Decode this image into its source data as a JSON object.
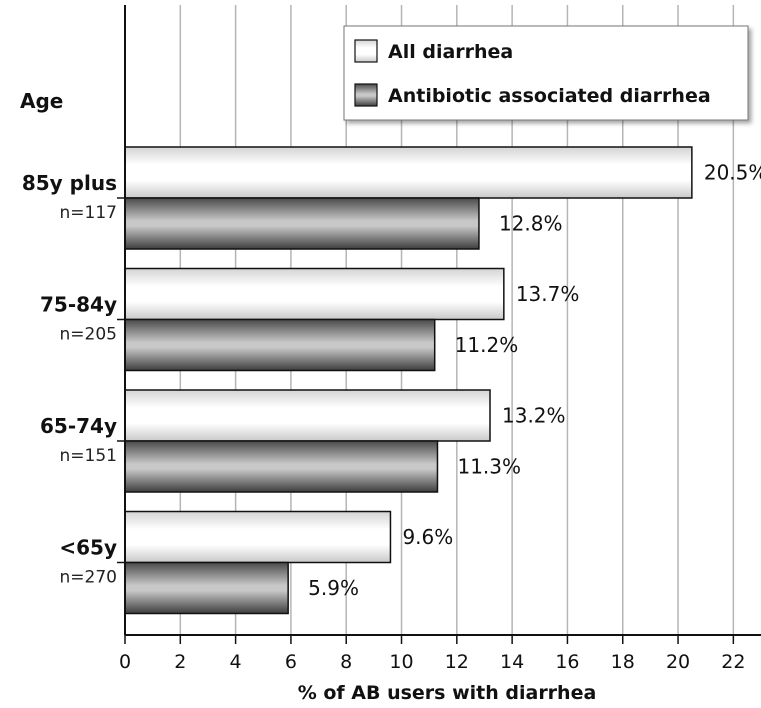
{
  "chart_data": {
    "type": "bar",
    "orientation": "horizontal",
    "categories": [
      "85y plus",
      "75-84y",
      "65-74y",
      "<65y"
    ],
    "category_counts": [
      "n=117",
      "n=205",
      "n=151",
      "n=270"
    ],
    "series": [
      {
        "name": "All diarrhea",
        "values": [
          20.5,
          13.7,
          13.2,
          9.6
        ],
        "labels": [
          "20.5%",
          "13.7%",
          "13.2%",
          "9.6%"
        ],
        "color": "#f4f4f4"
      },
      {
        "name": "Antibiotic associated diarrhea",
        "values": [
          12.8,
          11.2,
          11.3,
          5.9
        ],
        "labels": [
          "12.8%",
          "11.2%",
          "11.3%",
          "5.9%"
        ],
        "color": "#7a7a7a"
      }
    ],
    "category_axis_title": "Age",
    "xlabel": "% of AB users with diarrhea",
    "xlim": [
      0,
      23
    ],
    "xticks": [
      0,
      2,
      4,
      6,
      8,
      10,
      12,
      14,
      16,
      18,
      20,
      22
    ],
    "grid": true,
    "legend_position": "top-right"
  }
}
